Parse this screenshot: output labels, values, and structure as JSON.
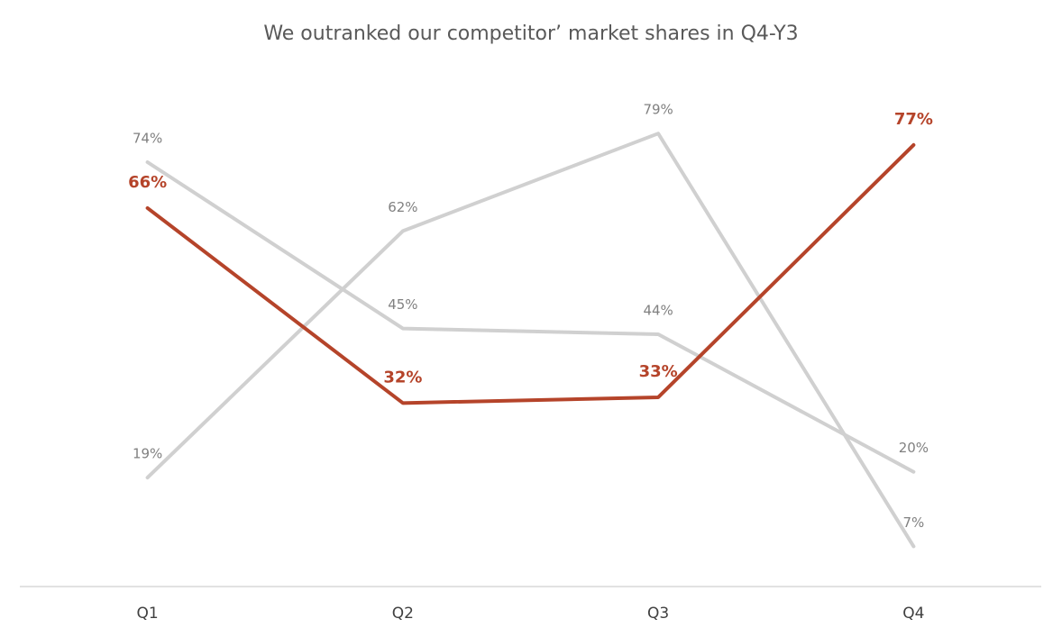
{
  "chart_data": {
    "type": "line",
    "title": "We outranked our competitor’ market shares in Q4-Y3",
    "categories": [
      "Q1",
      "Q2",
      "Q3",
      "Q4"
    ],
    "ylim": [
      0,
      85
    ],
    "series": [
      {
        "color": "#d0d0d0",
        "label_color": "#808080",
        "values": [
          74,
          45,
          44,
          20
        ],
        "value_labels": [
          "74%",
          "45%",
          "44%",
          "20%"
        ]
      },
      {
        "color": "#d0d0d0",
        "label_color": "#808080",
        "values": [
          19,
          62,
          79,
          7
        ],
        "value_labels": [
          "19%",
          "62%",
          "79%",
          "7%"
        ]
      },
      {
        "color": "#b5442a",
        "label_color": "#b5442a",
        "bold": true,
        "values": [
          66,
          32,
          33,
          77
        ],
        "value_labels": [
          "66%",
          "32%",
          "33%",
          "77%"
        ]
      }
    ]
  }
}
